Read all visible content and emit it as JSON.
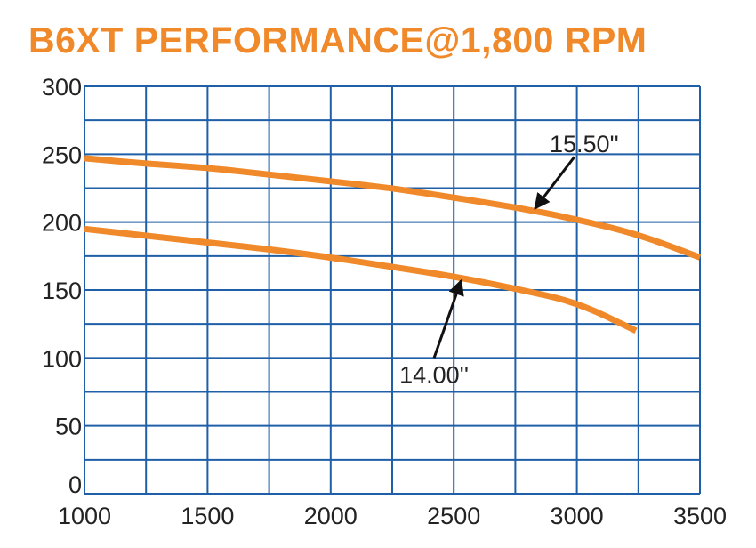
{
  "chart_data": {
    "type": "line",
    "title": "B6XT PERFORMANCE@1,800 RPM",
    "xlabel": "",
    "ylabel": "",
    "xlim": [
      1000,
      3500
    ],
    "ylim": [
      0,
      300
    ],
    "xticks": [
      1000,
      1500,
      2000,
      2500,
      3000,
      3500
    ],
    "yticks": [
      0,
      50,
      100,
      150,
      200,
      250,
      300
    ],
    "x_grid_step": 250,
    "y_grid_step": 25,
    "grid": true,
    "colors": {
      "grid": "#1f5fa8",
      "line": "#f0892a",
      "title": "#f0892a",
      "arrow": "#111111"
    },
    "series": [
      {
        "name": "15.50\"",
        "x": [
          1000,
          1250,
          1500,
          1750,
          2000,
          2250,
          2500,
          2750,
          3000,
          3250,
          3500
        ],
        "y": [
          247,
          243,
          240,
          235,
          230,
          225,
          218,
          211,
          202,
          191,
          174
        ],
        "annotation": {
          "text": "15.50''",
          "arrow_from": [
            2990,
            248
          ],
          "arrow_to": [
            2830,
            210
          ],
          "text_at": [
            3030,
            258
          ]
        }
      },
      {
        "name": "14.00\"",
        "x": [
          1000,
          1250,
          1500,
          1750,
          2000,
          2250,
          2500,
          2750,
          3000,
          3240
        ],
        "y": [
          195,
          190,
          185,
          180,
          174,
          167,
          160,
          151,
          141,
          120
        ],
        "annotation": {
          "text": "14.00''",
          "arrow_from": [
            2420,
            100
          ],
          "arrow_to": [
            2530,
            157
          ],
          "text_at": [
            2420,
            88
          ]
        }
      }
    ]
  }
}
